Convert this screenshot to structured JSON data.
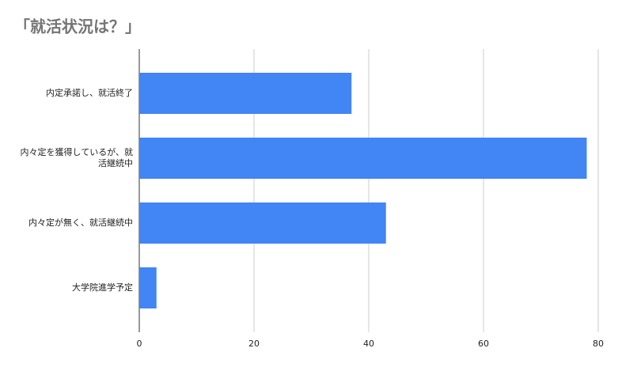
{
  "chart_data": {
    "type": "bar",
    "orientation": "horizontal",
    "title": "「就活状況は？」",
    "categories": [
      "内定承諾し、就活終了",
      "内々定を獲得しているが、就活継続中",
      "内々定が無く、就活継続中",
      "大学院進学予定"
    ],
    "values": [
      37,
      78,
      43,
      3
    ],
    "color": "#4285f4",
    "xlim": [
      0,
      80
    ],
    "xticks": [
      0,
      20,
      40,
      60,
      80
    ],
    "grid": true
  }
}
